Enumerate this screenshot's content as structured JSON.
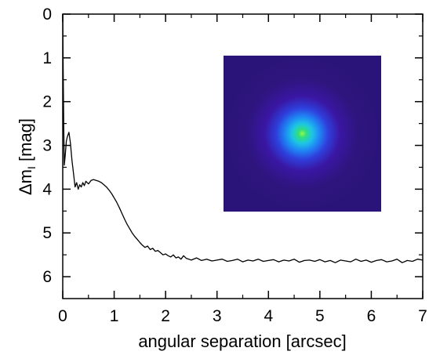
{
  "chart_data": {
    "type": "line",
    "xlabel": "angular separation [arcsec]",
    "ylabel_main": "Δm",
    "ylabel_sub": "I",
    "ylabel_rest": " [mag]",
    "xlim": [
      0,
      7
    ],
    "ylim": [
      6.5,
      0
    ],
    "y_inverted": true,
    "xticks": [
      0,
      1,
      2,
      3,
      4,
      5,
      6,
      7
    ],
    "yticks": [
      0,
      1,
      2,
      3,
      4,
      5,
      6
    ],
    "grid": false,
    "line_color": "#000000",
    "series": [
      {
        "x": [
          0.0,
          0.01,
          0.02,
          0.03,
          0.05,
          0.07,
          0.09,
          0.12,
          0.15,
          0.18,
          0.21,
          0.24,
          0.27,
          0.3,
          0.33,
          0.36,
          0.39,
          0.42,
          0.45,
          0.5,
          0.55,
          0.6,
          0.65,
          0.7,
          0.75,
          0.8,
          0.85,
          0.9,
          0.95,
          1.0,
          1.05,
          1.1,
          1.15,
          1.2,
          1.25,
          1.3,
          1.35,
          1.4,
          1.45,
          1.5,
          1.55,
          1.6,
          1.65,
          1.7,
          1.75,
          1.8,
          1.85,
          1.9,
          1.95,
          2.0,
          2.05,
          2.1,
          2.15,
          2.2,
          2.25,
          2.3,
          2.35,
          2.4,
          2.45,
          2.5,
          2.6,
          2.7,
          2.8,
          2.9,
          3.0,
          3.1,
          3.2,
          3.3,
          3.4,
          3.5,
          3.6,
          3.7,
          3.8,
          3.9,
          4.0,
          4.1,
          4.2,
          4.3,
          4.4,
          4.5,
          4.6,
          4.7,
          4.8,
          4.9,
          5.0,
          5.1,
          5.2,
          5.3,
          5.4,
          5.5,
          5.6,
          5.7,
          5.8,
          5.9,
          6.0,
          6.1,
          6.2,
          6.3,
          6.4,
          6.5,
          6.6,
          6.7,
          6.8,
          6.9,
          7.0
        ],
        "y": [
          0.0,
          1.5,
          2.6,
          3.45,
          3.2,
          2.9,
          2.8,
          2.7,
          2.95,
          3.35,
          3.65,
          3.95,
          3.85,
          4.0,
          3.9,
          3.95,
          3.85,
          3.92,
          3.82,
          3.88,
          3.8,
          3.78,
          3.8,
          3.82,
          3.85,
          3.9,
          3.95,
          4.02,
          4.1,
          4.2,
          4.3,
          4.42,
          4.55,
          4.68,
          4.8,
          4.9,
          5.0,
          5.08,
          5.15,
          5.22,
          5.28,
          5.33,
          5.3,
          5.38,
          5.35,
          5.42,
          5.4,
          5.45,
          5.5,
          5.48,
          5.52,
          5.55,
          5.5,
          5.57,
          5.55,
          5.6,
          5.52,
          5.58,
          5.6,
          5.62,
          5.57,
          5.63,
          5.6,
          5.64,
          5.62,
          5.6,
          5.65,
          5.63,
          5.6,
          5.66,
          5.62,
          5.64,
          5.6,
          5.65,
          5.63,
          5.61,
          5.66,
          5.62,
          5.64,
          5.6,
          5.67,
          5.63,
          5.62,
          5.65,
          5.61,
          5.66,
          5.63,
          5.68,
          5.62,
          5.64,
          5.66,
          5.6,
          5.65,
          5.62,
          5.67,
          5.63,
          5.61,
          5.66,
          5.64,
          5.6,
          5.68,
          5.63,
          5.65,
          5.6,
          5.62
        ]
      }
    ],
    "inset": {
      "type": "image",
      "description_kind": "psf-colormap",
      "colors": [
        "#2a1479",
        "#3a10a0",
        "#3030d8",
        "#1f7ef2",
        "#20c0e8",
        "#30e080",
        "#a0f040"
      ]
    }
  }
}
